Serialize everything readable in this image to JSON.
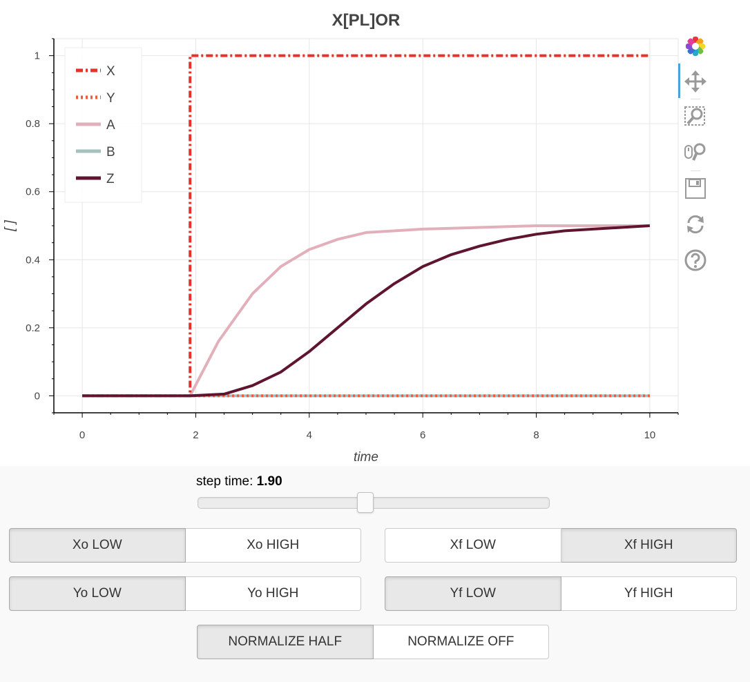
{
  "plot": {
    "title": "X[PL]OR",
    "toolbar": {
      "tools": [
        "bokeh-logo-icon",
        "pan-icon",
        "box-zoom-icon",
        "wheel-zoom-icon",
        "save-icon",
        "reset-icon",
        "help-icon"
      ]
    }
  },
  "chart_data": {
    "type": "line",
    "title": "X[PL]OR",
    "xlabel": "time",
    "ylabel": "[ ]",
    "xlim": [
      -0.5,
      10.5
    ],
    "ylim": [
      -0.05,
      1.05
    ],
    "xticks": [
      0,
      2,
      4,
      6,
      8,
      10
    ],
    "yticks": [
      0,
      0.2,
      0.4,
      0.6,
      0.8,
      1
    ],
    "ytick_labels": [
      "0",
      "0.2",
      "0.4",
      "0.6",
      "0.8",
      "1"
    ],
    "grid": true,
    "legend_position": "top-left",
    "series": [
      {
        "name": "X",
        "color": "#e6332a",
        "dash": "dashdot",
        "x": [
          0,
          1.9,
          1.9,
          10
        ],
        "y": [
          0,
          0,
          1,
          1
        ]
      },
      {
        "name": "Y",
        "color": "#ee5a3a",
        "dash": "dotted",
        "x": [
          0,
          10
        ],
        "y": [
          0,
          0
        ]
      },
      {
        "name": "A",
        "color": "#e2b0bb",
        "dash": "solid",
        "x": [
          0,
          1.9,
          2.4,
          3.0,
          3.5,
          4.0,
          4.5,
          5.0,
          6.0,
          7.0,
          8.0,
          10.0
        ],
        "y": [
          0,
          0,
          0.16,
          0.3,
          0.38,
          0.43,
          0.46,
          0.48,
          0.49,
          0.495,
          0.5,
          0.5
        ]
      },
      {
        "name": "B",
        "color": "#a6bfbf",
        "dash": "solid",
        "x": [
          0,
          10
        ],
        "y": [
          0,
          0
        ]
      },
      {
        "name": "Z",
        "color": "#5f1530",
        "dash": "solid",
        "x": [
          0,
          1.9,
          2.5,
          3.0,
          3.5,
          4.0,
          4.5,
          5.0,
          5.5,
          6.0,
          6.5,
          7.0,
          7.5,
          8.0,
          8.5,
          9.0,
          10.0
        ],
        "y": [
          0,
          0,
          0.005,
          0.03,
          0.07,
          0.13,
          0.2,
          0.27,
          0.33,
          0.38,
          0.415,
          0.44,
          0.46,
          0.475,
          0.485,
          0.49,
          0.5
        ]
      }
    ]
  },
  "controls": {
    "slider": {
      "label": "step time: ",
      "value_text": "1.90",
      "value": 1.9,
      "min": 0,
      "max": 4
    },
    "xo": {
      "low": "Xo LOW",
      "high": "Xo HIGH",
      "active": "low"
    },
    "xf": {
      "low": "Xf LOW",
      "high": "Xf HIGH",
      "active": "high"
    },
    "yo": {
      "low": "Yo LOW",
      "high": "Yo HIGH",
      "active": "low"
    },
    "yf": {
      "low": "Yf LOW",
      "high": "Yf HIGH",
      "active": "low"
    },
    "normalize": {
      "half": "NORMALIZE HALF",
      "off": "NORMALIZE OFF",
      "active": "half"
    }
  }
}
